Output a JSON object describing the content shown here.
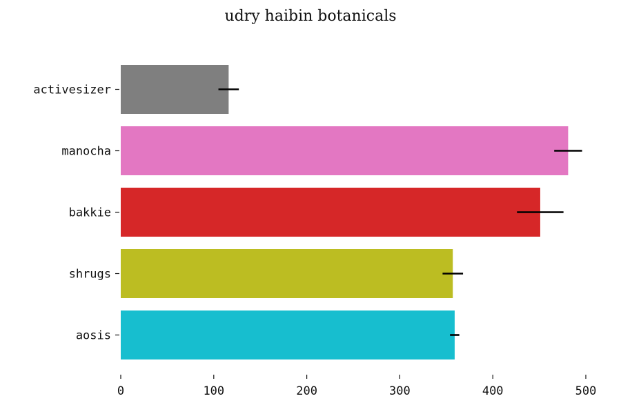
{
  "chart_data": {
    "type": "bar",
    "orientation": "horizontal",
    "title": "udry haibin botanicals",
    "xlabel": "",
    "ylabel": "",
    "categories": [
      "activesizer",
      "manocha",
      "bakkie",
      "shrugs",
      "aosis"
    ],
    "values": [
      116,
      481,
      451,
      357,
      359
    ],
    "errors": [
      11,
      15,
      25,
      11,
      5
    ],
    "colors": [
      "#7f7f7f",
      "#e377c2",
      "#d62728",
      "#bcbd22",
      "#17becf"
    ],
    "xlim": [
      0,
      500
    ],
    "xticks": [
      0,
      100,
      200,
      300,
      400,
      500
    ],
    "grid": false,
    "legend": "none"
  }
}
